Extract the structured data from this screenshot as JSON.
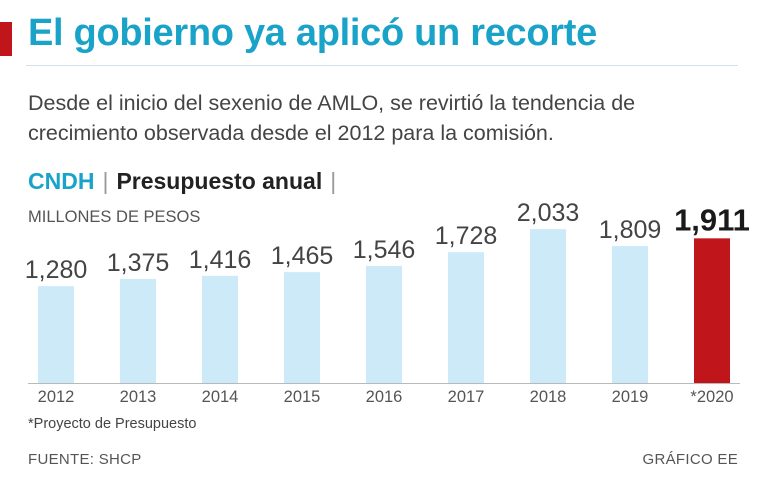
{
  "header": {
    "title": "El gobierno ya aplicó un recorte",
    "subtitle": "Desde el inicio del sexenio de AMLO, se revirtió la tendencia de crecimiento observada desde el 2012 para la comisión."
  },
  "chart_header": {
    "entity": "CNDH",
    "separator": "|",
    "title": "Presupuesto anual",
    "units": "MILLONES DE PESOS"
  },
  "footer": {
    "note": "*Proyecto de Presupuesto",
    "source": "FUENTE: SHCP",
    "credit": "GRÁFICO EE"
  },
  "colors": {
    "title": "#1aa3c8",
    "bar": "#cdeaf9",
    "highlight_bar": "#c0151b",
    "accent": "#c0151b"
  },
  "chart_data": {
    "type": "bar",
    "title": "Presupuesto anual",
    "ylabel": "MILLONES DE PESOS",
    "xlabel": "",
    "categories": [
      "2012",
      "2013",
      "2014",
      "2015",
      "2016",
      "2017",
      "2018",
      "2019",
      "*2020"
    ],
    "values": [
      1280,
      1375,
      1416,
      1465,
      1546,
      1728,
      2033,
      1809,
      1911
    ],
    "labels": [
      "1,280",
      "1,375",
      "1,416",
      "1,465",
      "1,546",
      "1,728",
      "2,033",
      "1,809",
      "1,911"
    ],
    "highlight_index": 8,
    "ylim": [
      0,
      2100
    ]
  }
}
